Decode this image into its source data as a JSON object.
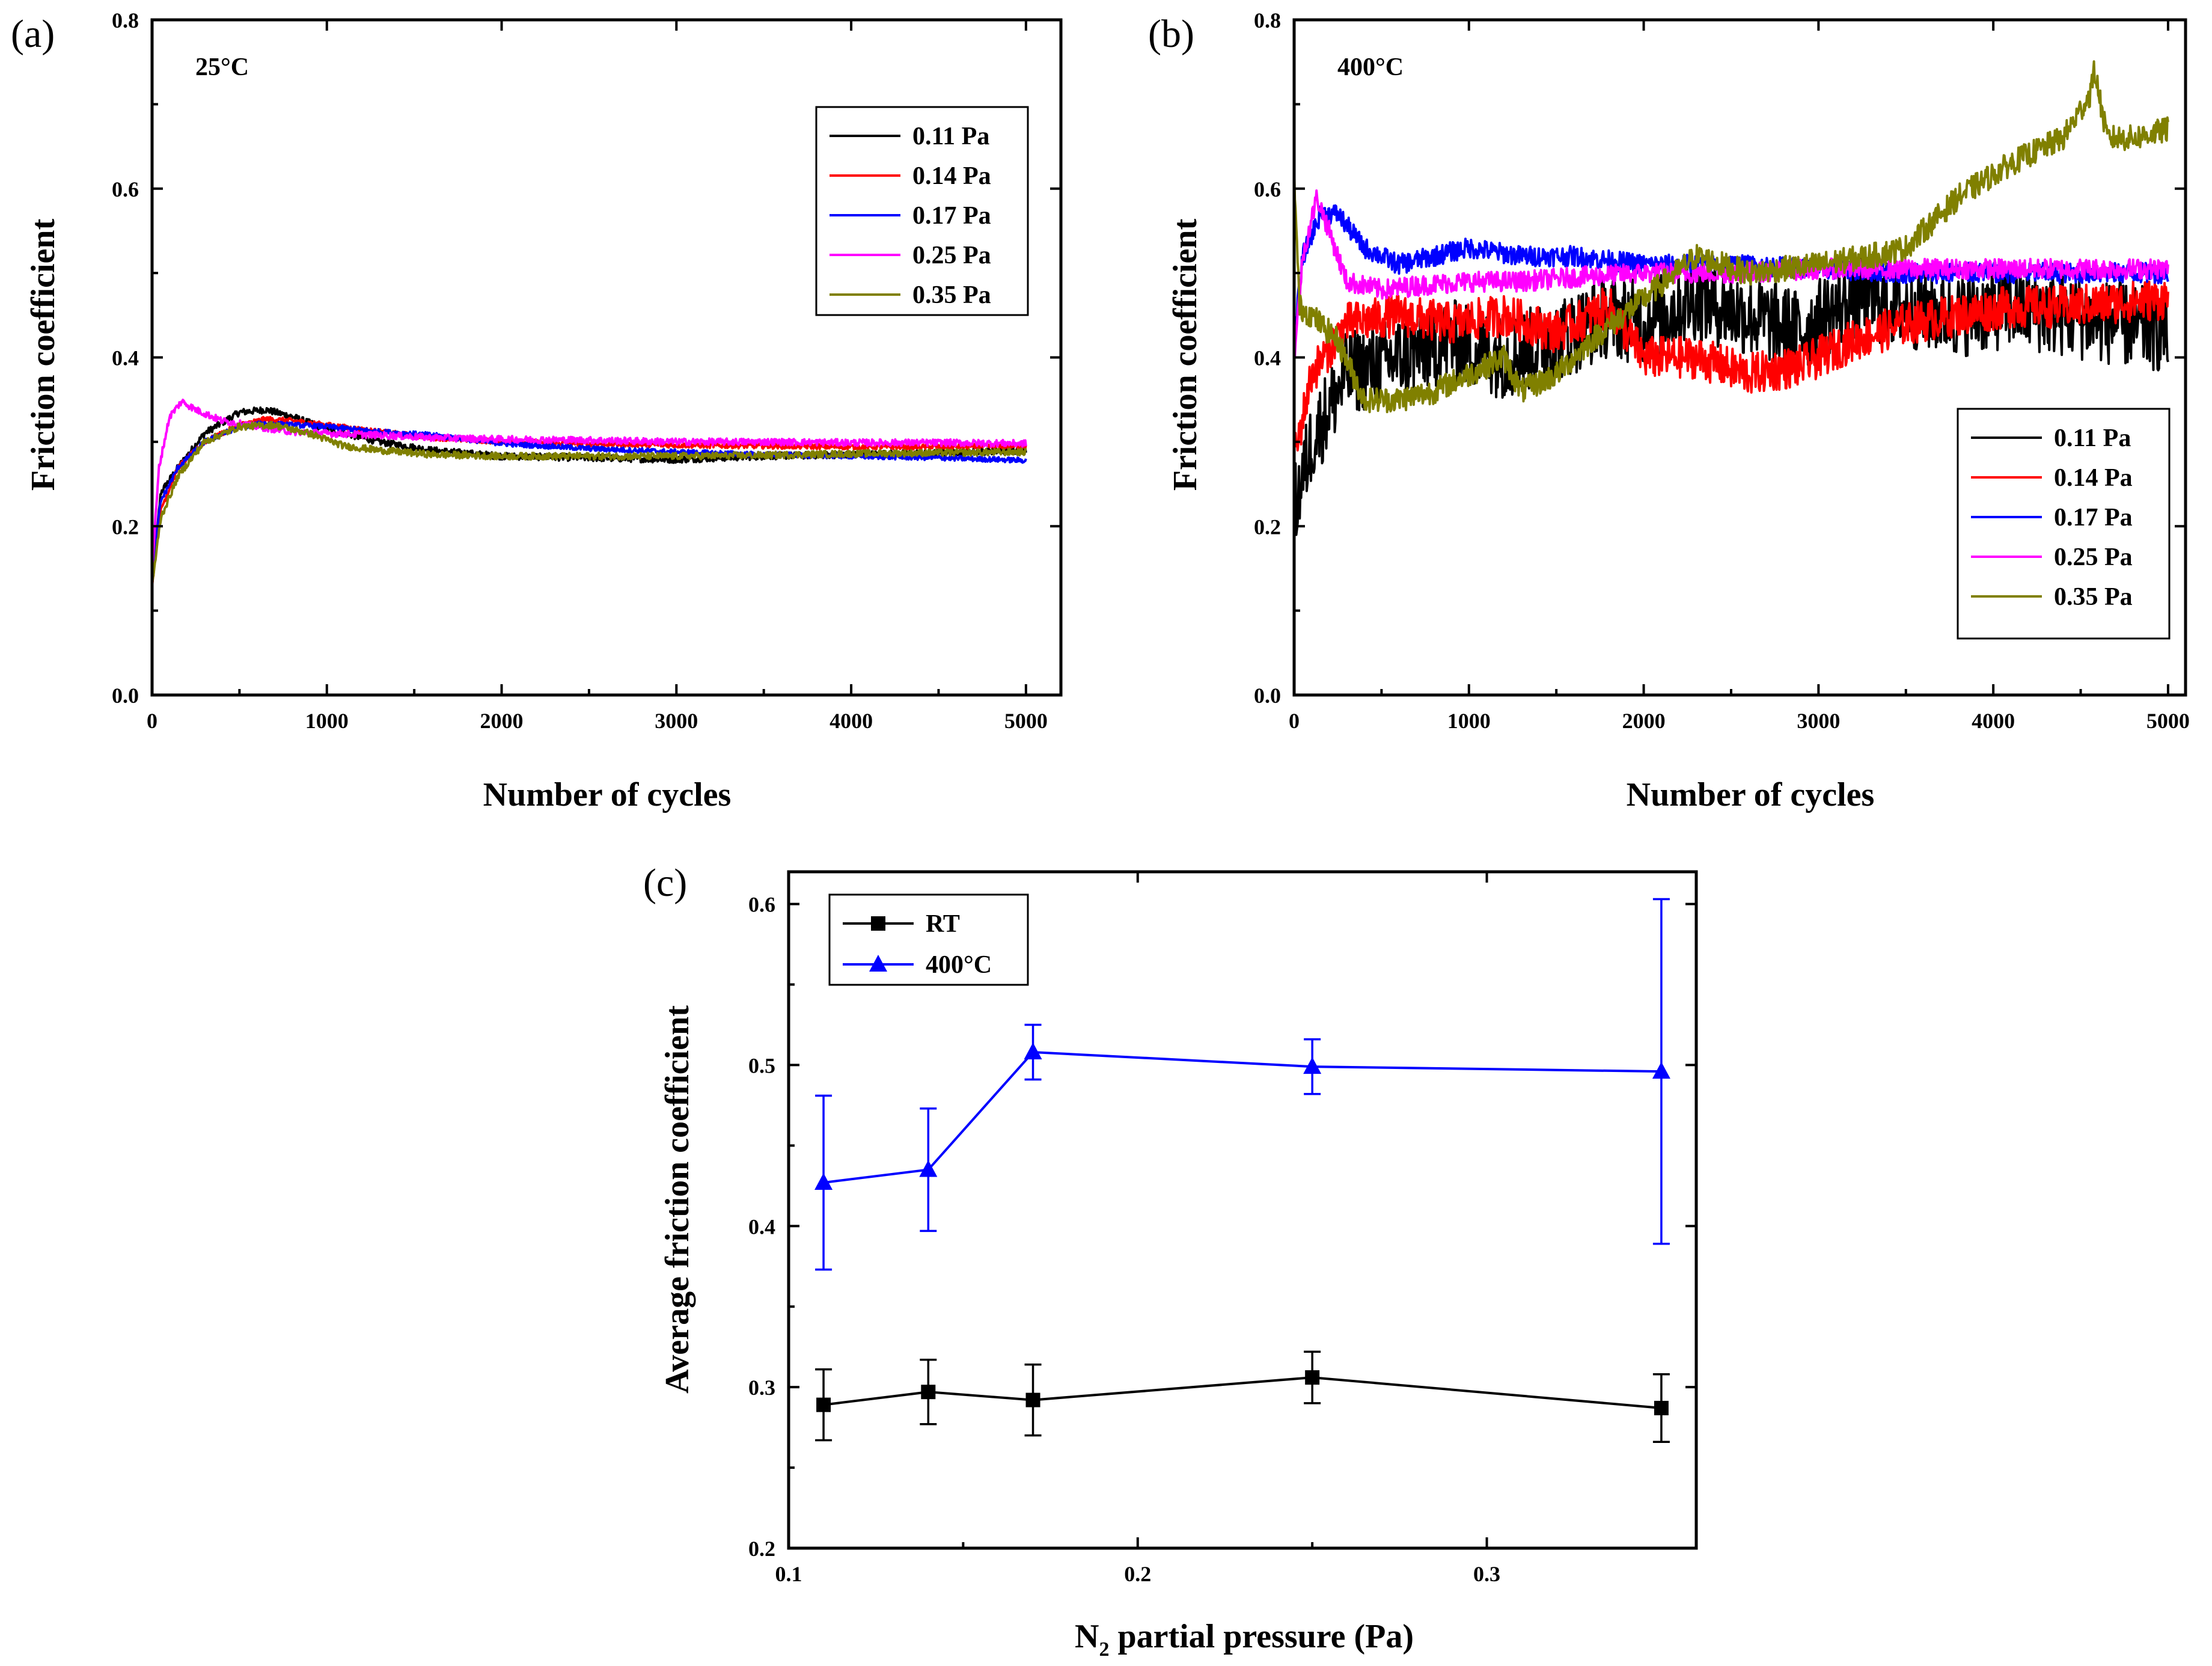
{
  "chart_data": [
    {
      "panel": "(a)",
      "type": "line",
      "annotation": "25°C",
      "xlabel": "Number of cycles",
      "ylabel": "Friction coefficient",
      "xlim": [
        0,
        5200
      ],
      "ylim": [
        0.0,
        0.8
      ],
      "xticks": [
        0,
        1000,
        2000,
        3000,
        4000,
        5000
      ],
      "yticks": [
        0.0,
        0.2,
        0.4,
        0.6,
        0.8
      ],
      "xtick_labels": [
        "0",
        "1000",
        "2000",
        "3000",
        "4000",
        "5000"
      ],
      "ytick_labels": [
        "0.0",
        "0.2",
        "0.4",
        "0.6",
        "0.8"
      ],
      "legend_position": "top-right",
      "series": [
        {
          "name": "0.11 Pa",
          "color": "#000000",
          "x": [
            0,
            50,
            150,
            300,
            500,
            650,
            800,
            1000,
            1300,
            1600,
            2000,
            2500,
            3000,
            3500,
            4000,
            4500,
            5000
          ],
          "y": [
            0.13,
            0.24,
            0.27,
            0.31,
            0.335,
            0.338,
            0.33,
            0.315,
            0.3,
            0.29,
            0.283,
            0.281,
            0.279,
            0.283,
            0.285,
            0.287,
            0.29
          ],
          "noise": 0.004
        },
        {
          "name": "0.14 Pa",
          "color": "#ff0000",
          "x": [
            0,
            50,
            150,
            300,
            500,
            650,
            800,
            1000,
            1300,
            1600,
            2000,
            2500,
            3000,
            3500,
            4000,
            4500,
            5000
          ],
          "y": [
            0.13,
            0.22,
            0.27,
            0.3,
            0.32,
            0.327,
            0.325,
            0.32,
            0.312,
            0.305,
            0.3,
            0.298,
            0.296,
            0.295,
            0.294,
            0.294,
            0.295
          ],
          "noise": 0.003
        },
        {
          "name": "0.17 Pa",
          "color": "#0000ff",
          "x": [
            0,
            50,
            150,
            300,
            500,
            650,
            800,
            1000,
            1300,
            1600,
            2000,
            2500,
            3000,
            3500,
            4000,
            4500,
            5000
          ],
          "y": [
            0.15,
            0.23,
            0.27,
            0.3,
            0.318,
            0.322,
            0.32,
            0.318,
            0.312,
            0.308,
            0.298,
            0.292,
            0.288,
            0.285,
            0.283,
            0.281,
            0.278
          ],
          "noise": 0.003
        },
        {
          "name": "0.25 Pa",
          "color": "#ff00ff",
          "x": [
            0,
            40,
            100,
            170,
            250,
            400,
            600,
            800,
            1000,
            1300,
            1600,
            2000,
            2500,
            3000,
            3500,
            4000,
            4500,
            5000
          ],
          "y": [
            0.15,
            0.27,
            0.33,
            0.348,
            0.338,
            0.325,
            0.318,
            0.312,
            0.31,
            0.308,
            0.305,
            0.303,
            0.302,
            0.3,
            0.3,
            0.299,
            0.299,
            0.298
          ],
          "noise": 0.004
        },
        {
          "name": "0.35 Pa",
          "color": "#808000",
          "x": [
            0,
            50,
            150,
            300,
            500,
            700,
            900,
            1100,
            1300,
            1600,
            2000,
            2500,
            3000,
            3500,
            4000,
            4500,
            5000
          ],
          "y": [
            0.13,
            0.21,
            0.26,
            0.3,
            0.318,
            0.32,
            0.31,
            0.295,
            0.29,
            0.285,
            0.283,
            0.283,
            0.283,
            0.284,
            0.286,
            0.287,
            0.288
          ],
          "noise": 0.004
        }
      ]
    },
    {
      "panel": "(b)",
      "type": "line",
      "annotation": "400°C",
      "xlabel": "Number of cycles",
      "ylabel": "Friction coefficient",
      "xlim": [
        0,
        5100
      ],
      "ylim": [
        0.0,
        0.8
      ],
      "xticks": [
        0,
        1000,
        2000,
        3000,
        4000,
        5000
      ],
      "yticks": [
        0.0,
        0.2,
        0.4,
        0.6,
        0.8
      ],
      "xtick_labels": [
        "0",
        "1000",
        "2000",
        "3000",
        "4000",
        "5000"
      ],
      "ytick_labels": [
        "0.0",
        "0.2",
        "0.4",
        "0.6",
        "0.8"
      ],
      "legend_position": "bottom-right",
      "series": [
        {
          "name": "0.11 Pa",
          "color": "#000000",
          "x": [
            0,
            100,
            300,
            600,
            900,
            1200,
            1500,
            1800,
            2000,
            2300,
            2600,
            2900,
            3200,
            3500,
            3800,
            4100,
            4400,
            4700,
            5000
          ],
          "y": [
            0.22,
            0.3,
            0.38,
            0.4,
            0.42,
            0.4,
            0.42,
            0.45,
            0.44,
            0.47,
            0.45,
            0.43,
            0.47,
            0.46,
            0.45,
            0.46,
            0.45,
            0.44,
            0.43
          ],
          "noise": 0.05
        },
        {
          "name": "0.14 Pa",
          "color": "#ff0000",
          "x": [
            0,
            100,
            300,
            600,
            900,
            1200,
            1500,
            1800,
            2000,
            2300,
            2600,
            2900,
            3200,
            3500,
            3800,
            4100,
            4400,
            4700,
            5000
          ],
          "y": [
            0.28,
            0.38,
            0.44,
            0.45,
            0.44,
            0.45,
            0.43,
            0.46,
            0.4,
            0.4,
            0.38,
            0.39,
            0.42,
            0.44,
            0.45,
            0.46,
            0.46,
            0.465,
            0.47
          ],
          "noise": 0.025
        },
        {
          "name": "0.17 Pa",
          "color": "#0000ff",
          "x": [
            0,
            50,
            150,
            250,
            400,
            600,
            800,
            1000,
            1300,
            1600,
            2000,
            2500,
            3000,
            3500,
            4000,
            4500,
            5000
          ],
          "y": [
            0.42,
            0.52,
            0.57,
            0.57,
            0.53,
            0.51,
            0.52,
            0.53,
            0.52,
            0.52,
            0.51,
            0.51,
            0.505,
            0.5,
            0.5,
            0.5,
            0.5
          ],
          "noise": 0.012
        },
        {
          "name": "0.25 Pa",
          "color": "#ff00ff",
          "x": [
            0,
            50,
            130,
            200,
            300,
            500,
            700,
            1000,
            1300,
            1600,
            2000,
            2500,
            3000,
            3500,
            4000,
            4500,
            5000
          ],
          "y": [
            0.4,
            0.52,
            0.59,
            0.55,
            0.49,
            0.48,
            0.485,
            0.49,
            0.49,
            0.495,
            0.5,
            0.5,
            0.505,
            0.505,
            0.505,
            0.505,
            0.505
          ],
          "noise": 0.012
        },
        {
          "name": "0.35 Pa",
          "color": "#808000",
          "x": [
            0,
            30,
            100,
            250,
            400,
            600,
            800,
            1000,
            1200,
            1300,
            1500,
            1700,
            2000,
            2300,
            2600,
            3000,
            3300,
            3500,
            3800,
            4100,
            4400,
            4550,
            4580,
            4650,
            4800,
            5000
          ],
          "y": [
            0.62,
            0.46,
            0.45,
            0.42,
            0.35,
            0.35,
            0.36,
            0.38,
            0.4,
            0.36,
            0.38,
            0.42,
            0.47,
            0.52,
            0.5,
            0.51,
            0.52,
            0.53,
            0.59,
            0.63,
            0.66,
            0.71,
            0.74,
            0.66,
            0.66,
            0.67
          ],
          "noise": 0.015
        }
      ]
    },
    {
      "panel": "(c)",
      "type": "scatter",
      "xlabel_main": "N",
      "xlabel_sub": "2",
      "xlabel_rest": " partial pressure (Pa)",
      "ylabel": "Average friction coefficient",
      "xlim": [
        0.1,
        0.36
      ],
      "ylim": [
        0.2,
        0.62
      ],
      "xticks": [
        0.1,
        0.2,
        0.3
      ],
      "yticks": [
        0.2,
        0.3,
        0.4,
        0.5,
        0.6
      ],
      "xtick_labels": [
        "0.1",
        "0.2",
        "0.3"
      ],
      "ytick_labels": [
        "0.2",
        "0.3",
        "0.4",
        "0.5",
        "0.6"
      ],
      "legend_position": "top-left",
      "series": [
        {
          "name": "RT",
          "color": "#000000",
          "marker": "square",
          "x": [
            0.11,
            0.14,
            0.17,
            0.25,
            0.35
          ],
          "y": [
            0.289,
            0.297,
            0.292,
            0.306,
            0.287
          ],
          "err": [
            0.022,
            0.02,
            0.022,
            0.016,
            0.021
          ]
        },
        {
          "name": "400°C",
          "color": "#0000ff",
          "marker": "triangle",
          "x": [
            0.11,
            0.14,
            0.17,
            0.25,
            0.35
          ],
          "y": [
            0.427,
            0.435,
            0.508,
            0.499,
            0.496
          ],
          "err": [
            0.054,
            0.038,
            0.017,
            0.017,
            0.107
          ]
        }
      ]
    }
  ]
}
